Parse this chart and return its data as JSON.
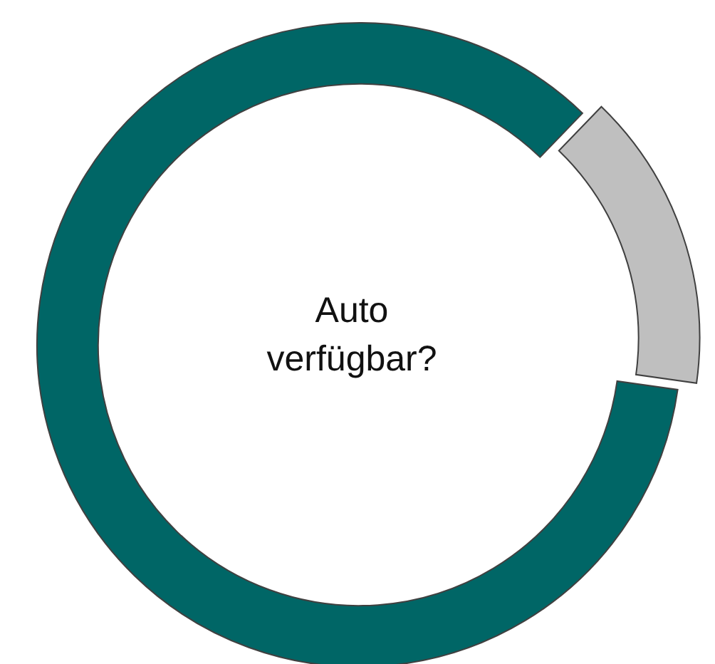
{
  "chart_data": {
    "type": "donut",
    "title": "Auto verfügbar?",
    "categories": [
      null,
      null
    ],
    "values": [
      15,
      85
    ],
    "colors": [
      "#bfbfbf",
      "#006666"
    ]
  }
}
